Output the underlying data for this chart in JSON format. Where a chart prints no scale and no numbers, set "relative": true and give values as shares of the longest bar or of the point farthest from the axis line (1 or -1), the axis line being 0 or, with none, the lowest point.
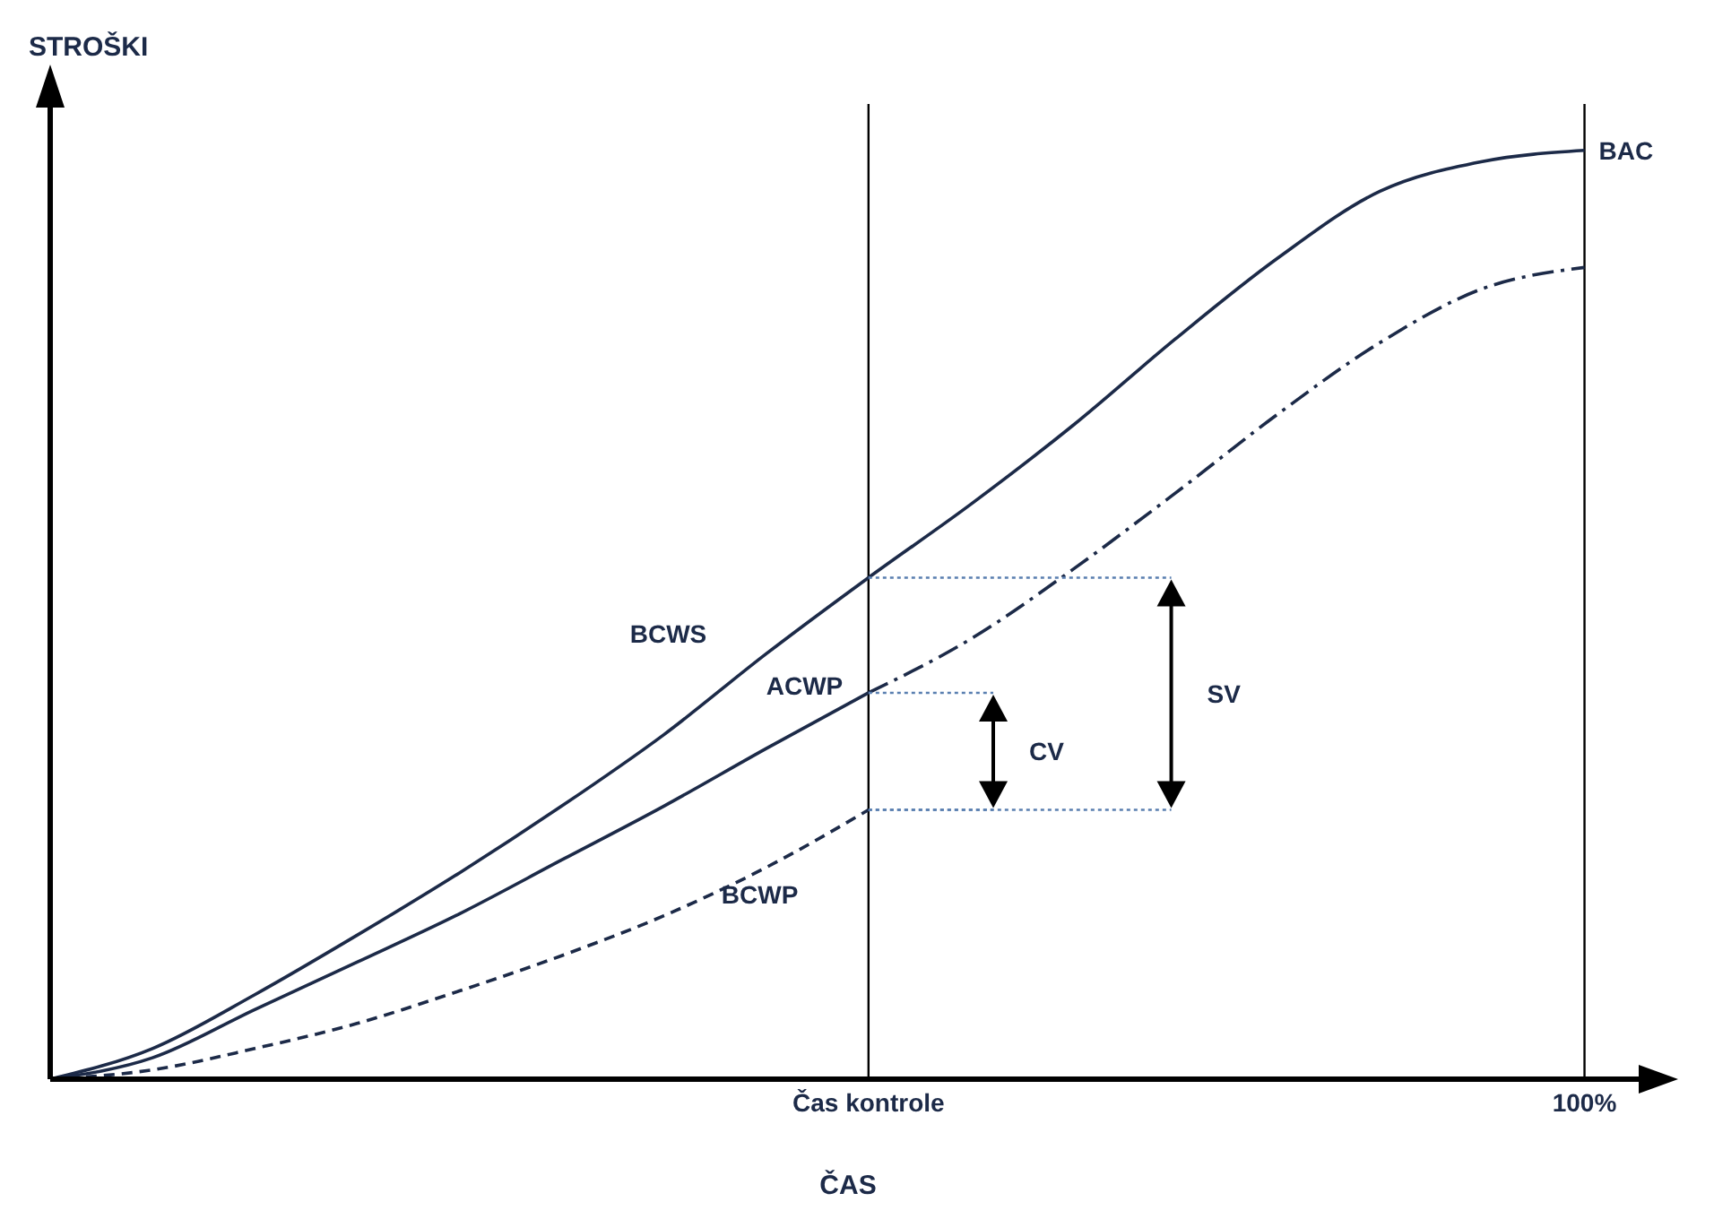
{
  "chart_data": {
    "type": "line",
    "relative": true,
    "xlabel": "ČAS",
    "ylabel": "STROŠKI",
    "categories": [
      null,
      null,
      null,
      null,
      null,
      null,
      null,
      null,
      "Čas kontrole",
      null,
      null,
      null,
      null,
      null,
      null,
      "100%"
    ],
    "series": [
      {
        "name": "BCWS",
        "color": "#1c2a48",
        "line_style": "solid",
        "values": [
          0,
          0.033,
          0.091,
          0.155,
          0.222,
          0.294,
          0.371,
          0.458,
          0.54,
          0.619,
          0.704,
          0.797,
          0.884,
          0.956,
          0.988,
          1
        ]
      },
      {
        "name": "ACWP",
        "color": "#1c2a48",
        "line_style": "solid",
        "values": [
          0,
          0.023,
          0.075,
          0.126,
          0.178,
          0.236,
          0.294,
          0.356,
          0.416,
          null,
          null,
          null,
          null,
          null,
          null,
          null
        ]
      },
      {
        "color": "#1c2a48",
        "line_style": "dashdot",
        "values": [
          null,
          null,
          null,
          null,
          null,
          null,
          null,
          null,
          0.416,
          0.474,
          0.549,
          0.631,
          0.716,
          0.793,
          0.851,
          0.874
        ]
      },
      {
        "name": "BCWP",
        "color": "#1c2a48",
        "line_style": "dashed",
        "values": [
          0,
          0.01,
          0.033,
          0.06,
          0.095,
          0.133,
          0.176,
          0.228,
          0.29,
          null,
          null,
          null,
          null,
          null,
          null,
          null
        ]
      }
    ],
    "ref_lines": [
      {
        "axis": "x",
        "value": "Čas kontrole",
        "color": "#000000"
      },
      {
        "axis": "x",
        "value": "100%",
        "color": "#000000"
      }
    ],
    "annotations": [
      {
        "text": "BAC",
        "x": "100%",
        "y": 1
      },
      "CV",
      "SV"
    ]
  }
}
